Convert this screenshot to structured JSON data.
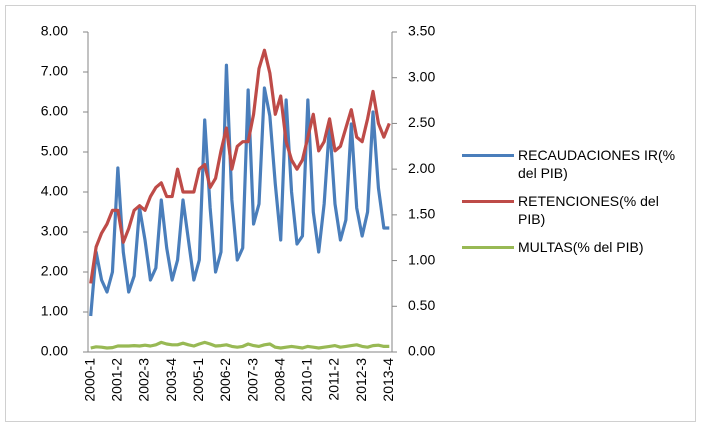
{
  "chart_data": {
    "type": "line",
    "categories": [
      "2000-1",
      null,
      null,
      null,
      null,
      "2001-2",
      null,
      null,
      null,
      null,
      "2002-3",
      null,
      null,
      null,
      null,
      "2003-4",
      null,
      null,
      null,
      null,
      "2005-1",
      null,
      null,
      null,
      null,
      "2006-2",
      null,
      null,
      null,
      null,
      "2007-3",
      null,
      null,
      null,
      null,
      "2008-4",
      null,
      null,
      null,
      null,
      "2010-1",
      null,
      null,
      null,
      null,
      "2011-2",
      null,
      null,
      null,
      null,
      "2012-3",
      null,
      null,
      null,
      null,
      "2013-4"
    ],
    "series": [
      {
        "name": "RECAUDACIONES IR(% del PIB)",
        "color": "#4a7ebb",
        "values": [
          0.9,
          2.5,
          1.8,
          1.5,
          2.0,
          4.6,
          2.5,
          1.5,
          1.9,
          3.6,
          2.8,
          1.8,
          2.1,
          3.8,
          2.6,
          1.8,
          2.3,
          3.8,
          2.8,
          1.8,
          2.3,
          5.8,
          3.6,
          2.0,
          2.5,
          7.17,
          3.8,
          2.3,
          2.6,
          6.55,
          3.2,
          3.7,
          6.6,
          5.9,
          4.2,
          2.8,
          6.3,
          4.0,
          2.7,
          2.9,
          6.3,
          3.5,
          2.5,
          3.7,
          5.7,
          3.7,
          2.8,
          3.3,
          5.7,
          3.6,
          2.9,
          3.5,
          6.0,
          4.1,
          3.1,
          3.1
        ]
      },
      {
        "name": "RETENCIONES(% del PIB)",
        "color": "#be4b48",
        "axis": "y2",
        "values": [
          0.75,
          1.15,
          1.3,
          1.4,
          1.55,
          1.55,
          1.2,
          1.35,
          1.55,
          1.6,
          1.55,
          1.7,
          1.8,
          1.85,
          1.7,
          1.7,
          2.0,
          1.75,
          1.75,
          1.75,
          2.0,
          2.05,
          1.8,
          1.9,
          2.2,
          2.45,
          2.0,
          2.25,
          2.3,
          2.3,
          2.6,
          3.1,
          3.3,
          3.05,
          2.6,
          2.8,
          2.3,
          2.1,
          2.0,
          2.1,
          2.35,
          2.6,
          2.2,
          2.3,
          2.55,
          2.2,
          2.25,
          2.45,
          2.65,
          2.35,
          2.3,
          2.55,
          2.85,
          2.5,
          2.35,
          2.5
        ]
      },
      {
        "name": "MULTAS(% del PIB)",
        "color": "#98b954",
        "values": [
          0.1,
          0.13,
          0.12,
          0.1,
          0.11,
          0.15,
          0.15,
          0.15,
          0.16,
          0.15,
          0.17,
          0.15,
          0.18,
          0.24,
          0.2,
          0.18,
          0.18,
          0.22,
          0.18,
          0.15,
          0.2,
          0.24,
          0.2,
          0.15,
          0.16,
          0.18,
          0.14,
          0.12,
          0.14,
          0.2,
          0.16,
          0.14,
          0.18,
          0.2,
          0.12,
          0.1,
          0.12,
          0.14,
          0.12,
          0.1,
          0.14,
          0.12,
          0.1,
          0.12,
          0.14,
          0.16,
          0.12,
          0.14,
          0.16,
          0.18,
          0.14,
          0.12,
          0.16,
          0.17,
          0.14,
          0.14
        ]
      }
    ],
    "ylim": [
      0,
      8
    ],
    "yticks": [
      {
        "value": 0,
        "label": "0.00"
      },
      {
        "value": 1,
        "label": "1.00"
      },
      {
        "value": 2,
        "label": "2.00"
      },
      {
        "value": 3,
        "label": "3.00"
      },
      {
        "value": 4,
        "label": "4.00"
      },
      {
        "value": 5,
        "label": "5.00"
      },
      {
        "value": 6,
        "label": "6.00"
      },
      {
        "value": 7,
        "label": "7.00"
      },
      {
        "value": 8,
        "label": "8.00"
      }
    ],
    "y2lim": [
      0,
      3.5
    ],
    "y2ticks": [
      {
        "value": 0,
        "label": "0.00"
      },
      {
        "value": 0.5,
        "label": "0.50"
      },
      {
        "value": 1,
        "label": "1.00"
      },
      {
        "value": 1.5,
        "label": "1.50"
      },
      {
        "value": 2,
        "label": "2.00"
      },
      {
        "value": 2.5,
        "label": "2.50"
      },
      {
        "value": 3,
        "label": "3.00"
      },
      {
        "value": 3.5,
        "label": "3.50"
      }
    ],
    "legend": "right"
  }
}
